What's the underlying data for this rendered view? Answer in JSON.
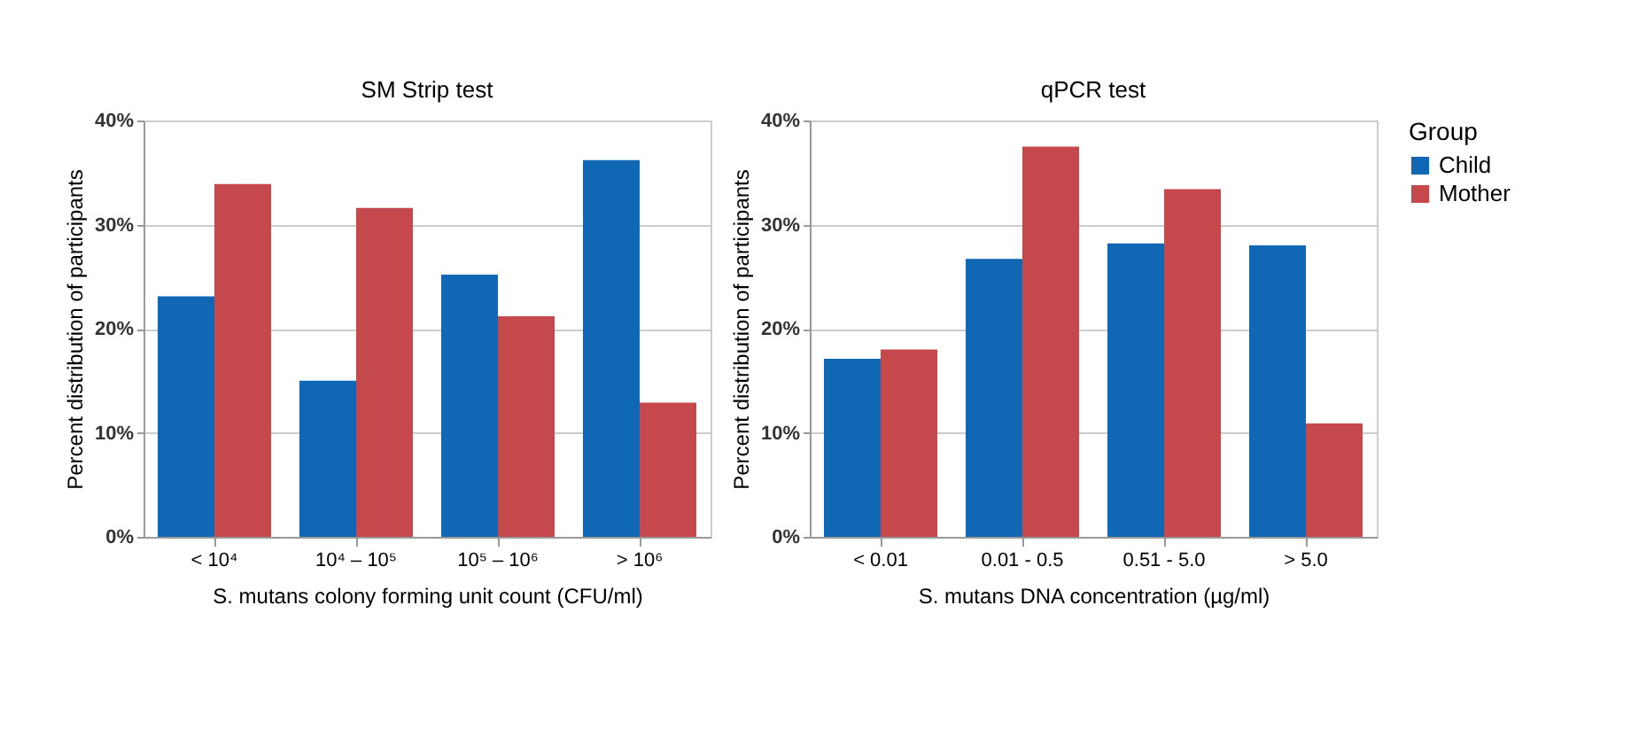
{
  "chart_data": [
    {
      "type": "bar",
      "title": "SM Strip test",
      "xlabel": "S. mutans colony forming unit count (CFU/ml)",
      "ylabel": "Percent distribution of participants",
      "categories": [
        "< 10⁴",
        "10⁴ – 10⁵",
        "10⁵ – 10⁶",
        "> 10⁶"
      ],
      "series": [
        {
          "color": "#1067b3",
          "values": [
            23.1,
            15.0,
            25.2,
            36.2
          ]
        },
        {
          "color": "#c4484c",
          "values": [
            33.9,
            31.6,
            21.2,
            12.9
          ]
        }
      ],
      "ylim": [
        0,
        40
      ],
      "yticks": [
        {
          "value": 0,
          "label": "0%"
        },
        {
          "value": 10,
          "label": "10%"
        },
        {
          "value": 20,
          "label": "20%"
        },
        {
          "value": 30,
          "label": "30%"
        },
        {
          "value": 40,
          "label": "40%"
        }
      ],
      "grid": "y",
      "legend": false
    },
    {
      "type": "bar",
      "title": "qPCR test",
      "xlabel": "S. mutans DNA concentration (µg/ml)",
      "ylabel": "Percent distribution of participants",
      "legend_title": "Group",
      "categories": [
        "< 0.01",
        "0.01 - 0.5",
        "0.51 - 5.0",
        "> 5.0"
      ],
      "series": [
        {
          "name": "Child",
          "color": "#1067b3",
          "values": [
            17.1,
            26.7,
            28.2,
            28.0
          ]
        },
        {
          "name": "Mother",
          "color": "#c4484c",
          "values": [
            18.0,
            37.5,
            33.4,
            10.9
          ]
        }
      ],
      "ylim": [
        0,
        40
      ],
      "yticks": [
        {
          "value": 0,
          "label": "0%"
        },
        {
          "value": 10,
          "label": "10%"
        },
        {
          "value": 20,
          "label": "20%"
        },
        {
          "value": 30,
          "label": "30%"
        },
        {
          "value": 40,
          "label": "40%"
        }
      ],
      "grid": "y",
      "legend": "right"
    }
  ]
}
